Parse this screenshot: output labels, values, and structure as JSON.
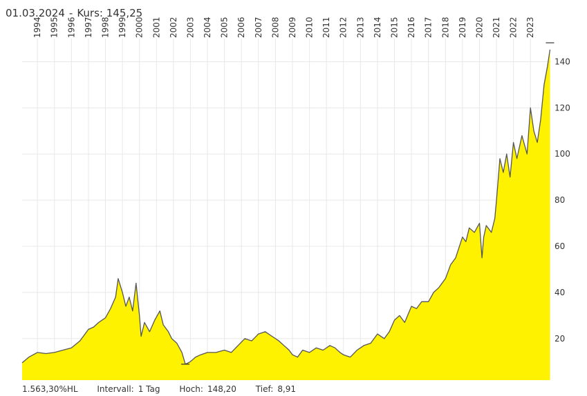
{
  "header": {
    "date": "01.03.2024",
    "kurs_label": "Kurs:",
    "kurs_value": "145,25"
  },
  "footer": {
    "performance": "1.563,30%HL",
    "interval_label": "Intervall:",
    "interval_value": "1 Tag",
    "high_label": "Hoch:",
    "high_value": "148,20",
    "low_label": "Tief:",
    "low_value": "8,91"
  },
  "colors": {
    "fill": "#fff200",
    "line": "#555555",
    "grid": "#e8e8e8"
  },
  "chart_data": {
    "type": "area",
    "title": "01.03.2024 - Kurs: 145,25",
    "xlabel": "",
    "ylabel": "",
    "x_range": [
      1993.1,
      2024.17
    ],
    "ylim": [
      2,
      150
    ],
    "x_ticks": [
      "1994",
      "1995",
      "1996",
      "1997",
      "1998",
      "1999",
      "2000",
      "2001",
      "2002",
      "2003",
      "2004",
      "2005",
      "2006",
      "2007",
      "2008",
      "2009",
      "2010",
      "2011",
      "2012",
      "2013",
      "2014",
      "2015",
      "2016",
      "2017",
      "2018",
      "2019",
      "2020",
      "2021",
      "2022",
      "2023"
    ],
    "y_ticks": [
      20,
      40,
      60,
      80,
      100,
      120,
      140
    ],
    "high": {
      "t": 2024.15,
      "value": 148.2
    },
    "low": {
      "t": 2002.7,
      "value": 8.91
    },
    "series": [
      {
        "name": "Kurs",
        "t": [
          1993.1,
          1993.5,
          1994.0,
          1994.5,
          1995.0,
          1995.5,
          1996.0,
          1996.5,
          1997.0,
          1997.3,
          1997.6,
          1998.0,
          1998.3,
          1998.6,
          1998.75,
          1999.0,
          1999.2,
          1999.4,
          1999.6,
          1999.8,
          2000.0,
          2000.1,
          2000.3,
          2000.6,
          2000.9,
          2001.2,
          2001.4,
          2001.7,
          2001.9,
          2002.2,
          2002.5,
          2002.7,
          2003.0,
          2003.3,
          2003.6,
          2004.0,
          2004.5,
          2005.0,
          2005.4,
          2005.8,
          2006.2,
          2006.6,
          2007.0,
          2007.4,
          2007.8,
          2008.2,
          2008.5,
          2008.8,
          2009.0,
          2009.3,
          2009.6,
          2010.0,
          2010.4,
          2010.8,
          2011.2,
          2011.5,
          2011.8,
          2012.0,
          2012.4,
          2012.8,
          2013.2,
          2013.6,
          2014.0,
          2014.4,
          2014.7,
          2015.0,
          2015.3,
          2015.6,
          2016.0,
          2016.3,
          2016.6,
          2017.0,
          2017.3,
          2017.6,
          2018.0,
          2018.3,
          2018.6,
          2019.0,
          2019.2,
          2019.4,
          2019.7,
          2020.0,
          2020.15,
          2020.25,
          2020.4,
          2020.7,
          2020.9,
          2021.0,
          2021.2,
          2021.4,
          2021.6,
          2021.8,
          2022.0,
          2022.2,
          2022.5,
          2022.8,
          2023.0,
          2023.2,
          2023.4,
          2023.6,
          2023.8,
          2024.0,
          2024.15
        ],
        "values": [
          9.5,
          12,
          14,
          13.5,
          14,
          15,
          16,
          19,
          24,
          25,
          27,
          29,
          33,
          38,
          46,
          40,
          34,
          38,
          32,
          44,
          30,
          21,
          27,
          23,
          28,
          32,
          26,
          23,
          20,
          18,
          14,
          8.9,
          10,
          12,
          13,
          14,
          14,
          15,
          14,
          17,
          20,
          19,
          22,
          23,
          21,
          19,
          17,
          15,
          13,
          12,
          15,
          14,
          16,
          15,
          17,
          16,
          14,
          13,
          12,
          15,
          17,
          18,
          22,
          20,
          23,
          28,
          30,
          27,
          34,
          33,
          36,
          36,
          40,
          42,
          46,
          52,
          55,
          64,
          62,
          68,
          66,
          70,
          55,
          64,
          69,
          66,
          72,
          80,
          98,
          92,
          100,
          90,
          105,
          98,
          108,
          100,
          120,
          110,
          105,
          115,
          130,
          138,
          145.25
        ]
      }
    ]
  }
}
